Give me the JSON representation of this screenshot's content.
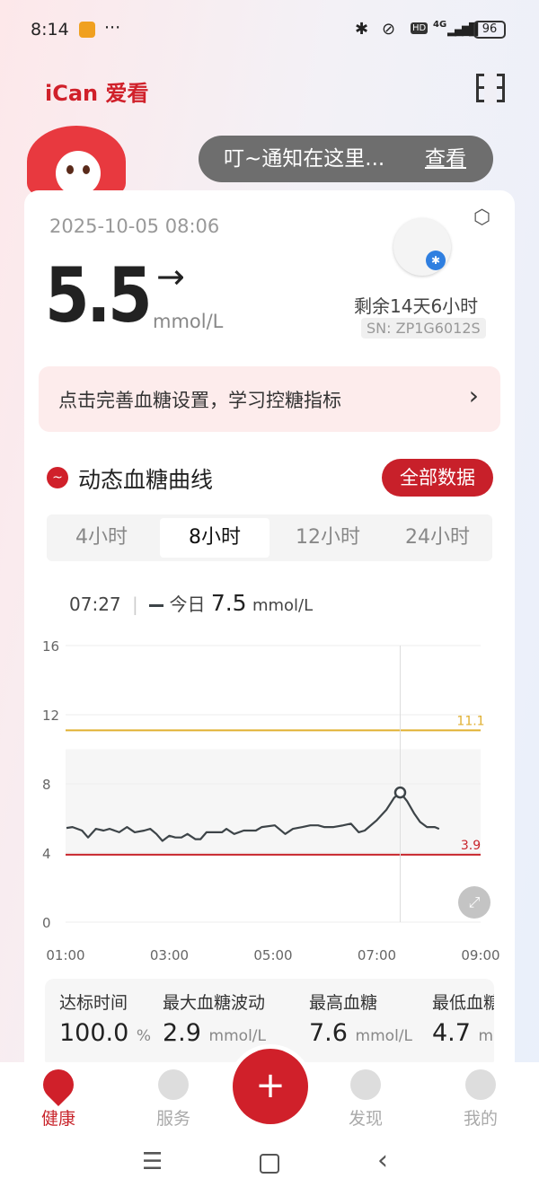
{
  "status_bar": {
    "time": "8:14",
    "more": "···",
    "network": "4G",
    "battery": "96"
  },
  "header": {
    "logo": "iCan 爱看",
    "notification_text": "叮~通知在这里...",
    "notification_action": "查看"
  },
  "reading": {
    "timestamp": "2025-10-05 08:06",
    "value": "5.5",
    "trend": "→",
    "unit": "mmol/L",
    "sensor_remaining": "剩余14天6小时",
    "serial": "SN: ZP1G6012S"
  },
  "banner": {
    "text": "点击完善血糖设置，学习控糖指标",
    "chevron": "›"
  },
  "section": {
    "title": "动态血糖曲线",
    "all_data_button": "全部数据"
  },
  "range_tabs": [
    {
      "label": "4小时"
    },
    {
      "label": "8小时",
      "active": true
    },
    {
      "label": "12小时"
    },
    {
      "label": "24小时"
    }
  ],
  "tooltip": {
    "time": "07:27",
    "series": "今日",
    "value": "7.5",
    "unit": "mmol/L"
  },
  "chart_data": {
    "type": "line",
    "xlabel": "",
    "ylabel": "",
    "ylim": [
      0,
      16
    ],
    "xlim": [
      "01:00",
      "09:00"
    ],
    "y_ticks": [
      "0",
      "4",
      "8",
      "12",
      "16"
    ],
    "x_ticks": [
      "01:00",
      "03:00",
      "05:00",
      "07:00",
      "09:00"
    ],
    "grid": true,
    "target_band": [
      3.9,
      10
    ],
    "thresholds": [
      {
        "label": "11.1",
        "value": 11.1,
        "color": "#e0b030"
      },
      {
        "label": "3.9",
        "value": 3.9,
        "color": "#c8252c"
      }
    ],
    "cursor": {
      "x": "07:27",
      "y": 7.5
    },
    "series": [
      {
        "color": "#3d4448",
        "x": [
          "01:01",
          "01:08",
          "01:19",
          "01:26",
          "01:35",
          "01:44",
          "01:51",
          "02:02",
          "02:11",
          "02:20",
          "02:31",
          "02:38",
          "02:45",
          "02:52",
          "03:00",
          "03:07",
          "03:14",
          "03:21",
          "03:30",
          "03:36",
          "03:43",
          "03:50",
          "04:01",
          "04:06",
          "04:15",
          "04:26",
          "04:40",
          "04:47",
          "05:02",
          "05:14",
          "05:23",
          "05:34",
          "05:43",
          "05:52",
          "05:59",
          "06:10",
          "06:21",
          "06:30",
          "06:39",
          "06:46",
          "07:00",
          "07:11",
          "07:20",
          "07:27",
          "07:35",
          "07:43",
          "07:50",
          "07:58",
          "08:07",
          "08:12"
        ],
        "values": [
          5.45,
          5.5,
          5.3,
          4.9,
          5.4,
          5.3,
          5.4,
          5.2,
          5.5,
          5.2,
          5.3,
          5.4,
          5.1,
          4.7,
          5.0,
          4.9,
          4.9,
          5.1,
          4.8,
          4.8,
          5.2,
          5.2,
          5.2,
          5.4,
          5.1,
          5.3,
          5.3,
          5.5,
          5.6,
          5.1,
          5.4,
          5.5,
          5.6,
          5.6,
          5.5,
          5.5,
          5.6,
          5.7,
          5.2,
          5.3,
          5.9,
          6.5,
          7.2,
          7.5,
          7.0,
          6.3,
          5.8,
          5.5,
          5.5,
          5.4
        ]
      }
    ]
  },
  "stats": [
    {
      "label": "达标时间",
      "value": "100.0",
      "unit": "%"
    },
    {
      "label": "最大血糖波动",
      "value": "2.9",
      "unit": "mmol/L"
    },
    {
      "label": "最高血糖",
      "value": "7.6",
      "unit": "mmol/L"
    },
    {
      "label": "最低血糖",
      "value": "4.7",
      "unit": "mmol/L"
    }
  ],
  "bottom_nav": [
    {
      "label": "健康",
      "active": true
    },
    {
      "label": "服务"
    },
    {
      "label": "+"
    },
    {
      "label": "发现"
    },
    {
      "label": "我的"
    }
  ],
  "colors": {
    "brand": "#d0202a",
    "active_nav": "#c8252c",
    "banner_bg": "#fdecec"
  }
}
